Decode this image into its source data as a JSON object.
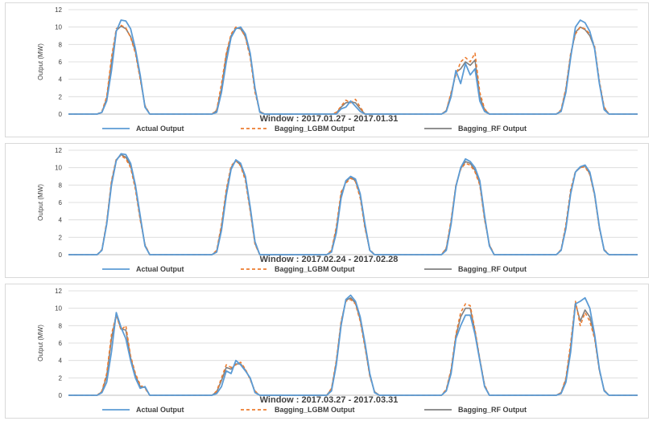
{
  "colors": {
    "actual": "#5b9bd5",
    "lgbm": "#ed7d31",
    "rf": "#808080",
    "grid": "#d9d9d9",
    "axis": "#bfbfbf"
  },
  "chart_data": [
    {
      "type": "line",
      "title": "Window : 2017.01.27 - 2017.01.31",
      "ylabel": "Output (MW)",
      "ylim": [
        0,
        12
      ],
      "yticks": [
        0,
        2,
        4,
        6,
        8,
        10,
        12
      ],
      "grid": true,
      "legend_position": "bottom",
      "points_per_day": 24,
      "series": [
        {
          "name": "Actual Output",
          "key": "actual",
          "style": "solid",
          "values": [
            0,
            0,
            0,
            0,
            0,
            0,
            0,
            0.2,
            1.5,
            5.0,
            9.5,
            10.8,
            10.7,
            9.8,
            7.5,
            4.5,
            0.8,
            0,
            0,
            0,
            0,
            0,
            0,
            0,
            0,
            0,
            0,
            0,
            0,
            0,
            0,
            0.2,
            2.5,
            6.0,
            8.8,
            9.8,
            10.0,
            9.2,
            7.0,
            3.0,
            0.2,
            0,
            0,
            0,
            0,
            0,
            0,
            0,
            0,
            0,
            0,
            0,
            0,
            0,
            0,
            0,
            0,
            0.6,
            0.8,
            1.5,
            0.9,
            0.3,
            0,
            0,
            0,
            0,
            0,
            0,
            0,
            0,
            0,
            0,
            0,
            0,
            0,
            0,
            0,
            0,
            0,
            0.3,
            2.0,
            5.0,
            3.5,
            5.8,
            4.5,
            5.2,
            1.5,
            0.3,
            0,
            0,
            0,
            0,
            0,
            0,
            0,
            0,
            0,
            0,
            0,
            0,
            0,
            0,
            0,
            0.3,
            2.5,
            6.5,
            10.0,
            10.8,
            10.5,
            9.5,
            7.5,
            3.5,
            0.5,
            0,
            0,
            0,
            0,
            0,
            0,
            0
          ]
        },
        {
          "name": "Bagging_LGBM Output",
          "key": "lgbm",
          "style": "dashed",
          "values": [
            0,
            0,
            0,
            0,
            0,
            0,
            0,
            0.3,
            2.0,
            6.5,
            9.8,
            10.2,
            9.9,
            8.8,
            7.0,
            4.0,
            1.0,
            0,
            0,
            0,
            0,
            0,
            0,
            0,
            0,
            0,
            0,
            0,
            0,
            0,
            0,
            0.5,
            3.5,
            7.0,
            9.2,
            10.0,
            9.9,
            8.8,
            6.5,
            2.5,
            0.3,
            0,
            0,
            0,
            0,
            0,
            0,
            0,
            0,
            0,
            0,
            0,
            0,
            0,
            0,
            0,
            0.2,
            0.9,
            1.6,
            1.3,
            1.7,
            0.8,
            0,
            0,
            0,
            0,
            0,
            0,
            0,
            0,
            0,
            0,
            0,
            0,
            0,
            0,
            0,
            0,
            0,
            0.4,
            2.5,
            4.5,
            6.0,
            6.5,
            6.0,
            7.0,
            2.5,
            0.6,
            0,
            0,
            0,
            0,
            0,
            0,
            0,
            0,
            0,
            0,
            0,
            0,
            0,
            0,
            0,
            0.5,
            3.0,
            7.0,
            9.2,
            10.0,
            9.8,
            9.2,
            7.8,
            3.8,
            0.8,
            0,
            0,
            0,
            0,
            0,
            0,
            0
          ]
        },
        {
          "name": "Bagging_RF Output",
          "key": "rf",
          "style": "solid",
          "values": [
            0,
            0,
            0,
            0,
            0,
            0,
            0,
            0.2,
            1.8,
            6.0,
            9.6,
            10.1,
            9.8,
            8.9,
            7.2,
            4.2,
            0.9,
            0,
            0,
            0,
            0,
            0,
            0,
            0,
            0,
            0,
            0,
            0,
            0,
            0,
            0,
            0.4,
            3.0,
            6.8,
            9.0,
            9.9,
            9.8,
            8.9,
            6.8,
            2.8,
            0.3,
            0,
            0,
            0,
            0,
            0,
            0,
            0,
            0,
            0,
            0,
            0,
            0,
            0,
            0,
            0,
            0.1,
            0.8,
            1.3,
            1.4,
            1.3,
            0.6,
            0,
            0,
            0,
            0,
            0,
            0,
            0,
            0,
            0,
            0,
            0,
            0,
            0,
            0,
            0,
            0,
            0,
            0.4,
            2.3,
            4.8,
            5.2,
            6.0,
            5.6,
            6.2,
            2.0,
            0.5,
            0,
            0,
            0,
            0,
            0,
            0,
            0,
            0,
            0,
            0,
            0,
            0,
            0,
            0,
            0,
            0.4,
            2.8,
            6.8,
            9.4,
            10.0,
            9.7,
            9.0,
            7.6,
            3.6,
            0.7,
            0,
            0,
            0,
            0,
            0,
            0,
            0
          ]
        }
      ]
    },
    {
      "type": "line",
      "title": "Window : 2017.02.24 - 2017.02.28",
      "ylabel": "Output (MW)",
      "ylim": [
        0,
        12
      ],
      "yticks": [
        0,
        2,
        4,
        6,
        8,
        10,
        12
      ],
      "grid": true,
      "legend_position": "bottom",
      "points_per_day": 24,
      "series": [
        {
          "name": "Actual Output",
          "key": "actual",
          "style": "solid",
          "values": [
            0,
            0,
            0,
            0,
            0,
            0,
            0,
            0.5,
            3.5,
            8.0,
            10.8,
            11.6,
            11.5,
            10.5,
            8.0,
            4.5,
            1.0,
            0,
            0,
            0,
            0,
            0,
            0,
            0,
            0,
            0,
            0,
            0,
            0,
            0,
            0,
            0.3,
            2.8,
            6.8,
            9.8,
            10.9,
            10.5,
            9.0,
            5.5,
            1.5,
            0,
            0,
            0,
            0,
            0,
            0,
            0,
            0,
            0,
            0,
            0,
            0,
            0,
            0,
            0,
            0.3,
            2.5,
            6.5,
            8.5,
            9.0,
            8.7,
            7.0,
            3.5,
            0.5,
            0,
            0,
            0,
            0,
            0,
            0,
            0,
            0,
            0,
            0,
            0,
            0,
            0,
            0,
            0,
            0.5,
            3.5,
            7.8,
            10.0,
            11.0,
            10.7,
            10.0,
            8.5,
            4.5,
            1.0,
            0,
            0,
            0,
            0,
            0,
            0,
            0,
            0,
            0,
            0,
            0,
            0,
            0,
            0,
            0.5,
            3.0,
            7.0,
            9.5,
            10.1,
            10.3,
            9.5,
            7.0,
            3.2,
            0.5,
            0,
            0,
            0,
            0,
            0,
            0,
            0
          ]
        },
        {
          "name": "Bagging_LGBM Output",
          "key": "lgbm",
          "style": "dashed",
          "values": [
            0,
            0,
            0,
            0,
            0,
            0,
            0,
            0.6,
            3.8,
            8.5,
            11.0,
            11.4,
            11.0,
            10.0,
            7.5,
            4.0,
            1.2,
            0,
            0,
            0,
            0,
            0,
            0,
            0,
            0,
            0,
            0,
            0,
            0,
            0,
            0,
            0.5,
            3.5,
            7.5,
            10.2,
            10.8,
            10.2,
            8.5,
            5.0,
            1.2,
            0,
            0,
            0,
            0,
            0,
            0,
            0,
            0,
            0,
            0,
            0,
            0,
            0,
            0,
            0,
            0.5,
            3.2,
            7.2,
            8.2,
            8.8,
            8.4,
            6.5,
            3.0,
            0.6,
            0,
            0,
            0,
            0,
            0,
            0,
            0,
            0,
            0,
            0,
            0,
            0,
            0,
            0,
            0,
            0.8,
            4.0,
            8.0,
            9.8,
            10.5,
            10.3,
            9.5,
            8.0,
            4.0,
            1.2,
            0,
            0,
            0,
            0,
            0,
            0,
            0,
            0,
            0,
            0,
            0,
            0,
            0,
            0,
            0.6,
            3.5,
            7.5,
            9.6,
            10.0,
            10.1,
            9.2,
            6.8,
            3.0,
            0.6,
            0,
            0,
            0,
            0,
            0,
            0,
            0
          ]
        },
        {
          "name": "Bagging_RF Output",
          "key": "rf",
          "style": "solid",
          "values": [
            0,
            0,
            0,
            0,
            0,
            0,
            0,
            0.5,
            3.6,
            8.3,
            10.9,
            11.5,
            11.2,
            10.2,
            7.8,
            4.2,
            1.1,
            0,
            0,
            0,
            0,
            0,
            0,
            0,
            0,
            0,
            0,
            0,
            0,
            0,
            0,
            0.4,
            3.2,
            7.2,
            10.0,
            10.8,
            10.3,
            8.8,
            5.2,
            1.3,
            0,
            0,
            0,
            0,
            0,
            0,
            0,
            0,
            0,
            0,
            0,
            0,
            0,
            0,
            0,
            0.4,
            2.9,
            6.9,
            8.4,
            8.9,
            8.5,
            6.8,
            3.2,
            0.5,
            0,
            0,
            0,
            0,
            0,
            0,
            0,
            0,
            0,
            0,
            0,
            0,
            0,
            0,
            0,
            0.7,
            3.8,
            7.9,
            9.9,
            10.7,
            10.5,
            9.7,
            8.2,
            4.2,
            1.1,
            0,
            0,
            0,
            0,
            0,
            0,
            0,
            0,
            0,
            0,
            0,
            0,
            0,
            0,
            0.5,
            3.2,
            7.2,
            9.5,
            10.0,
            10.2,
            9.3,
            6.9,
            3.1,
            0.5,
            0,
            0,
            0,
            0,
            0,
            0,
            0
          ]
        }
      ]
    },
    {
      "type": "line",
      "title": "Window : 2017.03.27 - 2017.03.31",
      "ylabel": "Output (MW)",
      "ylim": [
        0,
        12
      ],
      "yticks": [
        0,
        2,
        4,
        6,
        8,
        10,
        12
      ],
      "grid": true,
      "legend_position": "bottom",
      "points_per_day": 24,
      "series": [
        {
          "name": "Actual Output",
          "key": "actual",
          "style": "solid",
          "values": [
            0,
            0,
            0,
            0,
            0,
            0,
            0,
            0.3,
            1.5,
            5.0,
            9.5,
            7.8,
            6.5,
            4.0,
            2.0,
            0.8,
            1.0,
            0,
            0,
            0,
            0,
            0,
            0,
            0,
            0,
            0,
            0,
            0,
            0,
            0,
            0,
            0.2,
            1.0,
            2.8,
            2.5,
            4.0,
            3.5,
            2.8,
            2.0,
            0.3,
            0,
            0,
            0,
            0,
            0,
            0,
            0,
            0,
            0,
            0,
            0,
            0,
            0,
            0,
            0,
            0.5,
            3.5,
            8.0,
            11.0,
            11.5,
            10.8,
            9.0,
            6.0,
            2.5,
            0.3,
            0,
            0,
            0,
            0,
            0,
            0,
            0,
            0,
            0,
            0,
            0,
            0,
            0,
            0,
            0.5,
            2.5,
            6.5,
            8.0,
            9.2,
            9.2,
            7.0,
            4.0,
            1.0,
            0,
            0,
            0,
            0,
            0,
            0,
            0,
            0,
            0,
            0,
            0,
            0,
            0,
            0,
            0,
            0.2,
            1.5,
            5.0,
            10.5,
            10.8,
            11.2,
            10.0,
            7.0,
            3.0,
            0.5,
            0,
            0,
            0,
            0,
            0,
            0,
            0
          ]
        },
        {
          "name": "Bagging_LGBM Output",
          "key": "lgbm",
          "style": "dashed",
          "values": [
            0,
            0,
            0,
            0,
            0,
            0,
            0,
            0.5,
            2.5,
            7.0,
            9.2,
            7.5,
            8.0,
            4.5,
            2.5,
            1.2,
            0.8,
            0,
            0,
            0,
            0,
            0,
            0,
            0,
            0,
            0,
            0,
            0,
            0,
            0,
            0,
            0.5,
            2.0,
            3.5,
            3.2,
            3.5,
            3.8,
            3.0,
            1.8,
            0.5,
            0,
            0,
            0,
            0,
            0,
            0,
            0,
            0,
            0,
            0,
            0,
            0,
            0,
            0,
            0,
            0.8,
            4.0,
            8.5,
            10.8,
            11.0,
            10.5,
            8.5,
            5.5,
            2.2,
            0.4,
            0,
            0,
            0,
            0,
            0,
            0,
            0,
            0,
            0,
            0,
            0,
            0,
            0,
            0,
            0.7,
            3.0,
            7.0,
            9.5,
            10.5,
            10.3,
            7.5,
            4.2,
            1.2,
            0,
            0,
            0,
            0,
            0,
            0,
            0,
            0,
            0,
            0,
            0,
            0,
            0,
            0,
            0,
            0.3,
            2.0,
            6.0,
            10.8,
            8.0,
            9.5,
            8.5,
            6.5,
            2.8,
            0.6,
            0,
            0,
            0,
            0,
            0,
            0,
            0
          ]
        },
        {
          "name": "Bagging_RF Output",
          "key": "rf",
          "style": "solid",
          "values": [
            0,
            0,
            0,
            0,
            0,
            0,
            0,
            0.4,
            2.2,
            6.5,
            9.3,
            7.6,
            7.5,
            4.3,
            2.3,
            1.0,
            0.9,
            0,
            0,
            0,
            0,
            0,
            0,
            0,
            0,
            0,
            0,
            0,
            0,
            0,
            0,
            0.4,
            1.7,
            3.2,
            3.0,
            3.6,
            3.6,
            2.9,
            1.9,
            0.4,
            0,
            0,
            0,
            0,
            0,
            0,
            0,
            0,
            0,
            0,
            0,
            0,
            0,
            0,
            0,
            0.7,
            3.8,
            8.3,
            10.9,
            11.2,
            10.6,
            8.7,
            5.7,
            2.3,
            0.4,
            0,
            0,
            0,
            0,
            0,
            0,
            0,
            0,
            0,
            0,
            0,
            0,
            0,
            0,
            0.6,
            2.8,
            6.8,
            9.0,
            10.0,
            10.0,
            7.3,
            4.1,
            1.1,
            0,
            0,
            0,
            0,
            0,
            0,
            0,
            0,
            0,
            0,
            0,
            0,
            0,
            0,
            0,
            0.3,
            1.8,
            5.6,
            10.6,
            8.5,
            9.8,
            9.0,
            6.7,
            2.9,
            0.6,
            0,
            0,
            0,
            0,
            0,
            0,
            0
          ]
        }
      ]
    }
  ]
}
